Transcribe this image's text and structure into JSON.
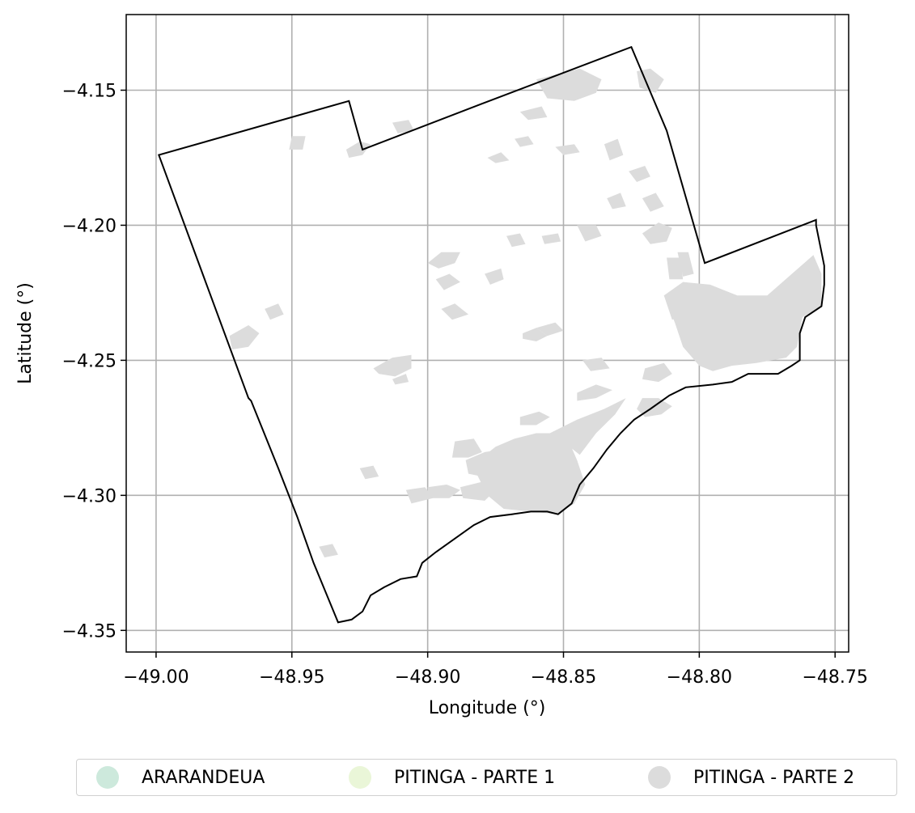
{
  "chart_data": {
    "type": "map",
    "xlabel": "Longitude (°)",
    "ylabel": "Latitude (°)",
    "xlim": [
      -49.011,
      -48.745
    ],
    "ylim": [
      -4.358,
      -4.122
    ],
    "xticks": [
      -49.0,
      -48.95,
      -48.9,
      -48.85,
      -48.8,
      -48.75
    ],
    "xtick_labels": [
      "−49.00",
      "−48.95",
      "−48.90",
      "−48.85",
      "−48.80",
      "−48.75"
    ],
    "yticks": [
      -4.15,
      -4.2,
      -4.25,
      -4.3,
      -4.35
    ],
    "ytick_labels": [
      "−4.15",
      "−4.20",
      "−4.25",
      "−4.30",
      "−4.35"
    ],
    "grid": true,
    "legend_position": "bottom",
    "legend": [
      {
        "label": "ARARANDEUA",
        "color": "#cde9dc"
      },
      {
        "label": "PITINGA - PARTE 1",
        "color": "#eaf6d8"
      },
      {
        "label": "PITINGA - PARTE 2",
        "color": "#dcdcdc"
      }
    ],
    "boundary_color": "#000000",
    "boundary": [
      [
        -48.999,
        -4.174
      ],
      [
        -48.929,
        -4.154
      ],
      [
        -48.924,
        -4.172
      ],
      [
        -48.88,
        -4.155
      ],
      [
        -48.825,
        -4.134
      ],
      [
        -48.812,
        -4.165
      ],
      [
        -48.798,
        -4.214
      ],
      [
        -48.757,
        -4.198
      ],
      [
        -48.757,
        -4.2
      ],
      [
        -48.754,
        -4.215
      ],
      [
        -48.754,
        -4.222
      ],
      [
        -48.755,
        -4.23
      ],
      [
        -48.761,
        -4.234
      ],
      [
        -48.763,
        -4.24
      ],
      [
        -48.763,
        -4.25
      ],
      [
        -48.766,
        -4.252
      ],
      [
        -48.771,
        -4.255
      ],
      [
        -48.778,
        -4.255
      ],
      [
        -48.782,
        -4.255
      ],
      [
        -48.788,
        -4.258
      ],
      [
        -48.795,
        -4.259
      ],
      [
        -48.805,
        -4.26
      ],
      [
        -48.811,
        -4.263
      ],
      [
        -48.818,
        -4.268
      ],
      [
        -48.824,
        -4.272
      ],
      [
        -48.829,
        -4.277
      ],
      [
        -48.834,
        -4.283
      ],
      [
        -48.839,
        -4.29
      ],
      [
        -48.844,
        -4.296
      ],
      [
        -48.847,
        -4.303
      ],
      [
        -48.852,
        -4.307
      ],
      [
        -48.856,
        -4.306
      ],
      [
        -48.862,
        -4.306
      ],
      [
        -48.869,
        -4.307
      ],
      [
        -48.877,
        -4.308
      ],
      [
        -48.883,
        -4.311
      ],
      [
        -48.89,
        -4.316
      ],
      [
        -48.897,
        -4.321
      ],
      [
        -48.902,
        -4.325
      ],
      [
        -48.904,
        -4.33
      ],
      [
        -48.91,
        -4.331
      ],
      [
        -48.916,
        -4.334
      ],
      [
        -48.921,
        -4.337
      ],
      [
        -48.924,
        -4.343
      ],
      [
        -48.928,
        -4.346
      ],
      [
        -48.933,
        -4.347
      ],
      [
        -48.942,
        -4.325
      ],
      [
        -48.948,
        -4.308
      ],
      [
        -48.955,
        -4.29
      ],
      [
        -48.965,
        -4.265
      ],
      [
        -48.966,
        -4.264
      ],
      [
        -48.999,
        -4.174
      ]
    ],
    "patches": [
      [
        [
          -48.775,
          -4.226
        ],
        [
          -48.758,
          -4.211
        ],
        [
          -48.755,
          -4.218
        ],
        [
          -48.755,
          -4.23
        ],
        [
          -48.762,
          -4.234
        ],
        [
          -48.764,
          -4.245
        ],
        [
          -48.768,
          -4.249
        ],
        [
          -48.779,
          -4.251
        ],
        [
          -48.788,
          -4.252
        ],
        [
          -48.795,
          -4.254
        ],
        [
          -48.8,
          -4.252
        ],
        [
          -48.806,
          -4.245
        ],
        [
          -48.809,
          -4.236
        ],
        [
          -48.813,
          -4.226
        ],
        [
          -48.806,
          -4.221
        ],
        [
          -48.796,
          -4.222
        ],
        [
          -48.786,
          -4.226
        ]
      ],
      [
        [
          -48.813,
          -4.226
        ],
        [
          -48.805,
          -4.224
        ],
        [
          -48.797,
          -4.226
        ],
        [
          -48.792,
          -4.23
        ],
        [
          -48.802,
          -4.232
        ],
        [
          -48.81,
          -4.235
        ]
      ],
      [
        [
          -48.842,
          -4.296
        ],
        [
          -48.845,
          -4.287
        ],
        [
          -48.848,
          -4.28
        ],
        [
          -48.853,
          -4.277
        ],
        [
          -48.86,
          -4.277
        ],
        [
          -48.868,
          -4.279
        ],
        [
          -48.875,
          -4.282
        ],
        [
          -48.88,
          -4.286
        ],
        [
          -48.882,
          -4.292
        ],
        [
          -48.878,
          -4.3
        ],
        [
          -48.872,
          -4.305
        ],
        [
          -48.862,
          -4.306
        ],
        [
          -48.852,
          -4.307
        ],
        [
          -48.846,
          -4.303
        ]
      ],
      [
        [
          -48.855,
          -4.277
        ],
        [
          -48.845,
          -4.272
        ],
        [
          -48.835,
          -4.268
        ],
        [
          -48.827,
          -4.264
        ],
        [
          -48.831,
          -4.27
        ],
        [
          -48.838,
          -4.277
        ],
        [
          -48.844,
          -4.285
        ],
        [
          -48.849,
          -4.281
        ]
      ],
      [
        [
          -48.823,
          -4.268
        ],
        [
          -48.82,
          -4.271
        ],
        [
          -48.814,
          -4.27
        ],
        [
          -48.81,
          -4.267
        ],
        [
          -48.815,
          -4.264
        ],
        [
          -48.821,
          -4.264
        ]
      ],
      [
        [
          -48.886,
          -4.287
        ],
        [
          -48.879,
          -4.284
        ],
        [
          -48.873,
          -4.283
        ],
        [
          -48.87,
          -4.288
        ],
        [
          -48.874,
          -4.292
        ],
        [
          -48.88,
          -4.293
        ],
        [
          -48.885,
          -4.292
        ]
      ],
      [
        [
          -48.89,
          -4.28
        ],
        [
          -48.883,
          -4.279
        ],
        [
          -48.88,
          -4.284
        ],
        [
          -48.885,
          -4.286
        ],
        [
          -48.891,
          -4.286
        ]
      ],
      [
        [
          -48.9,
          -4.297
        ],
        [
          -48.893,
          -4.296
        ],
        [
          -48.888,
          -4.298
        ],
        [
          -48.892,
          -4.301
        ],
        [
          -48.9,
          -4.301
        ]
      ],
      [
        [
          -48.888,
          -4.297
        ],
        [
          -48.88,
          -4.295
        ],
        [
          -48.875,
          -4.298
        ],
        [
          -48.879,
          -4.302
        ],
        [
          -48.887,
          -4.301
        ]
      ],
      [
        [
          -48.908,
          -4.298
        ],
        [
          -48.901,
          -4.297
        ],
        [
          -48.898,
          -4.301
        ],
        [
          -48.906,
          -4.303
        ]
      ],
      [
        [
          -48.866,
          -4.271
        ],
        [
          -48.859,
          -4.269
        ],
        [
          -48.855,
          -4.271
        ],
        [
          -48.86,
          -4.274
        ],
        [
          -48.866,
          -4.274
        ]
      ],
      [
        [
          -48.845,
          -4.262
        ],
        [
          -48.838,
          -4.259
        ],
        [
          -48.832,
          -4.261
        ],
        [
          -48.838,
          -4.264
        ],
        [
          -48.845,
          -4.265
        ]
      ],
      [
        [
          -48.82,
          -4.253
        ],
        [
          -48.813,
          -4.251
        ],
        [
          -48.81,
          -4.255
        ],
        [
          -48.815,
          -4.258
        ],
        [
          -48.821,
          -4.257
        ]
      ],
      [
        [
          -48.843,
          -4.25
        ],
        [
          -48.836,
          -4.249
        ],
        [
          -48.833,
          -4.253
        ],
        [
          -48.84,
          -4.254
        ]
      ],
      [
        [
          -48.86,
          -4.238
        ],
        [
          -48.853,
          -4.236
        ],
        [
          -48.85,
          -4.239
        ],
        [
          -48.856,
          -4.241
        ]
      ],
      [
        [
          -48.865,
          -4.24
        ],
        [
          -48.86,
          -4.238
        ],
        [
          -48.856,
          -4.241
        ],
        [
          -48.86,
          -4.243
        ],
        [
          -48.865,
          -4.242
        ]
      ],
      [
        [
          -48.92,
          -4.253
        ],
        [
          -48.913,
          -4.249
        ],
        [
          -48.906,
          -4.248
        ],
        [
          -48.906,
          -4.253
        ],
        [
          -48.912,
          -4.256
        ],
        [
          -48.918,
          -4.255
        ]
      ],
      [
        [
          -48.913,
          -4.257
        ],
        [
          -48.908,
          -4.255
        ],
        [
          -48.907,
          -4.258
        ],
        [
          -48.912,
          -4.259
        ]
      ],
      [
        [
          -48.9,
          -4.214
        ],
        [
          -48.895,
          -4.21
        ],
        [
          -48.888,
          -4.21
        ],
        [
          -48.89,
          -4.214
        ],
        [
          -48.896,
          -4.216
        ]
      ],
      [
        [
          -48.897,
          -4.22
        ],
        [
          -48.892,
          -4.218
        ],
        [
          -48.888,
          -4.221
        ],
        [
          -48.894,
          -4.224
        ]
      ],
      [
        [
          -48.895,
          -4.231
        ],
        [
          -48.89,
          -4.229
        ],
        [
          -48.885,
          -4.233
        ],
        [
          -48.891,
          -4.235
        ]
      ],
      [
        [
          -48.879,
          -4.218
        ],
        [
          -48.873,
          -4.216
        ],
        [
          -48.872,
          -4.22
        ],
        [
          -48.877,
          -4.222
        ]
      ],
      [
        [
          -48.871,
          -4.204
        ],
        [
          -48.866,
          -4.203
        ],
        [
          -48.864,
          -4.207
        ],
        [
          -48.869,
          -4.208
        ]
      ],
      [
        [
          -48.858,
          -4.204
        ],
        [
          -48.852,
          -4.203
        ],
        [
          -48.851,
          -4.206
        ],
        [
          -48.857,
          -4.207
        ]
      ],
      [
        [
          -48.845,
          -4.2
        ],
        [
          -48.838,
          -4.2
        ],
        [
          -48.836,
          -4.204
        ],
        [
          -48.842,
          -4.206
        ]
      ],
      [
        [
          -48.821,
          -4.203
        ],
        [
          -48.815,
          -4.199
        ],
        [
          -48.81,
          -4.201
        ],
        [
          -48.812,
          -4.206
        ],
        [
          -48.818,
          -4.207
        ]
      ],
      [
        [
          -48.808,
          -4.21
        ],
        [
          -48.804,
          -4.21
        ],
        [
          -48.802,
          -4.218
        ],
        [
          -48.806,
          -4.219
        ]
      ],
      [
        [
          -48.812,
          -4.212
        ],
        [
          -48.807,
          -4.212
        ],
        [
          -48.806,
          -4.22
        ],
        [
          -48.811,
          -4.22
        ]
      ],
      [
        [
          -48.93,
          -4.172
        ],
        [
          -48.925,
          -4.169
        ],
        [
          -48.921,
          -4.17
        ],
        [
          -48.924,
          -4.174
        ],
        [
          -48.929,
          -4.175
        ]
      ],
      [
        [
          -48.878,
          -4.175
        ],
        [
          -48.873,
          -4.173
        ],
        [
          -48.87,
          -4.176
        ],
        [
          -48.875,
          -4.177
        ]
      ],
      [
        [
          -48.868,
          -4.168
        ],
        [
          -48.863,
          -4.167
        ],
        [
          -48.861,
          -4.17
        ],
        [
          -48.866,
          -4.171
        ]
      ],
      [
        [
          -48.853,
          -4.171
        ],
        [
          -48.846,
          -4.17
        ],
        [
          -48.844,
          -4.173
        ],
        [
          -48.85,
          -4.174
        ]
      ],
      [
        [
          -48.835,
          -4.17
        ],
        [
          -48.83,
          -4.168
        ],
        [
          -48.828,
          -4.174
        ],
        [
          -48.833,
          -4.176
        ]
      ],
      [
        [
          -48.826,
          -4.18
        ],
        [
          -48.82,
          -4.178
        ],
        [
          -48.818,
          -4.182
        ],
        [
          -48.823,
          -4.184
        ]
      ],
      [
        [
          -48.834,
          -4.19
        ],
        [
          -48.829,
          -4.188
        ],
        [
          -48.827,
          -4.193
        ],
        [
          -48.832,
          -4.194
        ]
      ],
      [
        [
          -48.821,
          -4.19
        ],
        [
          -48.816,
          -4.188
        ],
        [
          -48.813,
          -4.193
        ],
        [
          -48.818,
          -4.195
        ]
      ],
      [
        [
          -48.86,
          -4.146
        ],
        [
          -48.844,
          -4.142
        ],
        [
          -48.836,
          -4.146
        ],
        [
          -48.838,
          -4.151
        ],
        [
          -48.846,
          -4.154
        ],
        [
          -48.856,
          -4.153
        ]
      ],
      [
        [
          -48.813,
          -4.146
        ],
        [
          -48.818,
          -4.142
        ],
        [
          -48.823,
          -4.143
        ],
        [
          -48.822,
          -4.149
        ],
        [
          -48.816,
          -4.151
        ]
      ],
      [
        [
          -48.866,
          -4.158
        ],
        [
          -48.858,
          -4.156
        ],
        [
          -48.856,
          -4.16
        ],
        [
          -48.863,
          -4.161
        ]
      ],
      [
        [
          -48.913,
          -4.162
        ],
        [
          -48.907,
          -4.161
        ],
        [
          -48.905,
          -4.165
        ],
        [
          -48.911,
          -4.166
        ]
      ],
      [
        [
          -48.95,
          -4.167
        ],
        [
          -48.945,
          -4.167
        ],
        [
          -48.946,
          -4.172
        ],
        [
          -48.951,
          -4.172
        ]
      ],
      [
        [
          -48.973,
          -4.241
        ],
        [
          -48.966,
          -4.237
        ],
        [
          -48.962,
          -4.24
        ],
        [
          -48.966,
          -4.245
        ],
        [
          -48.972,
          -4.246
        ]
      ],
      [
        [
          -48.96,
          -4.231
        ],
        [
          -48.955,
          -4.229
        ],
        [
          -48.953,
          -4.233
        ],
        [
          -48.958,
          -4.235
        ]
      ],
      [
        [
          -48.925,
          -4.29
        ],
        [
          -48.92,
          -4.289
        ],
        [
          -48.918,
          -4.293
        ],
        [
          -48.923,
          -4.294
        ]
      ],
      [
        [
          -48.94,
          -4.319
        ],
        [
          -48.935,
          -4.318
        ],
        [
          -48.933,
          -4.322
        ],
        [
          -48.938,
          -4.323
        ]
      ]
    ]
  }
}
